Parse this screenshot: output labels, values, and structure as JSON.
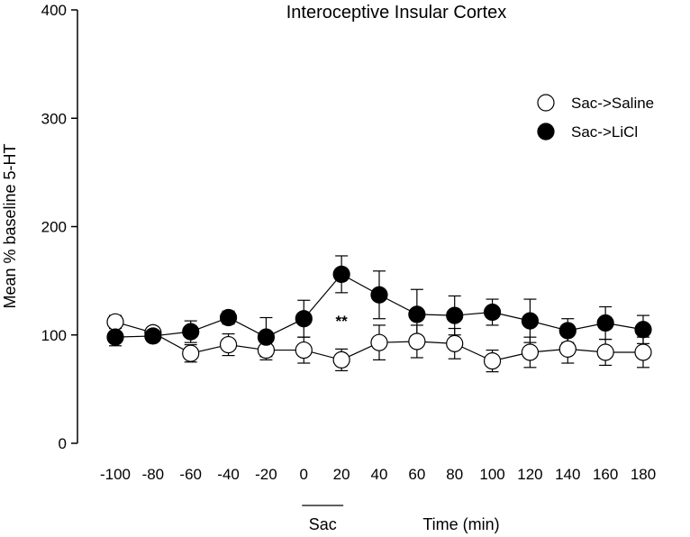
{
  "chart_data": {
    "type": "line",
    "title": "Interoceptive Insular Cortex",
    "xlabel": "Time (min)",
    "ylabel": "Mean % baseline 5-HT",
    "x": [
      -100,
      -80,
      -60,
      -40,
      -20,
      0,
      20,
      40,
      60,
      80,
      100,
      120,
      140,
      160,
      180
    ],
    "ylim": [
      0,
      400
    ],
    "yticks": [
      0,
      100,
      200,
      300,
      400
    ],
    "series": [
      {
        "name": "Sac->Saline",
        "marker": "open-circle",
        "values": [
          112,
          102,
          83,
          91,
          86,
          86,
          77,
          93,
          94,
          92,
          76,
          84,
          87,
          84,
          84
        ],
        "errors": [
          6,
          5,
          8,
          10,
          9,
          12,
          10,
          16,
          15,
          14,
          10,
          14,
          13,
          12,
          14
        ]
      },
      {
        "name": "Sac->LiCl",
        "marker": "filled-circle",
        "values": [
          98,
          99,
          103,
          116,
          98,
          115,
          156,
          137,
          119,
          118,
          121,
          113,
          104,
          111,
          105
        ],
        "errors": [
          8,
          5,
          10,
          6,
          18,
          17,
          17,
          22,
          23,
          18,
          12,
          20,
          11,
          15,
          13
        ]
      }
    ],
    "annotation": {
      "text": "**",
      "x": 20,
      "y": 108
    },
    "sac_bar": {
      "label": "Sac",
      "x_from": 0,
      "x_to": 20
    },
    "legend_position": "top-right"
  },
  "colors": {
    "axis": "#000000",
    "open_fill": "#ffffff",
    "closed_fill": "#000000"
  }
}
